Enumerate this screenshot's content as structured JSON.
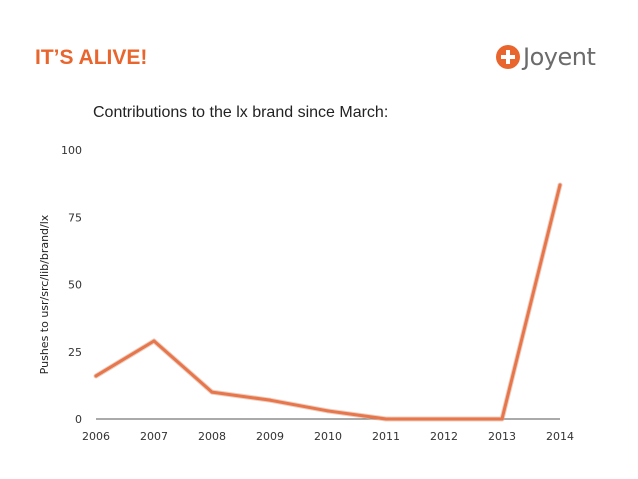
{
  "header": {
    "title": "IT’S ALIVE!",
    "brand": "Joyent"
  },
  "colors": {
    "accent": "#e8652d",
    "line": "#e8764a",
    "axis": "#555555"
  },
  "chart_data": {
    "type": "line",
    "title": "Contributions to the lx brand since March:",
    "xlabel": "",
    "ylabel": "Pushes to usr/src/lib/brand/lx",
    "x": [
      "2006",
      "2007",
      "2008",
      "2009",
      "2010",
      "2011",
      "2012",
      "2013",
      "2014"
    ],
    "series": [
      {
        "values": [
          16,
          29,
          10,
          7,
          3,
          0,
          0,
          0,
          87
        ]
      }
    ],
    "ylim": [
      0,
      100
    ],
    "yticks": [
      0,
      25,
      50,
      75,
      100
    ],
    "grid": false,
    "legend": "none"
  }
}
